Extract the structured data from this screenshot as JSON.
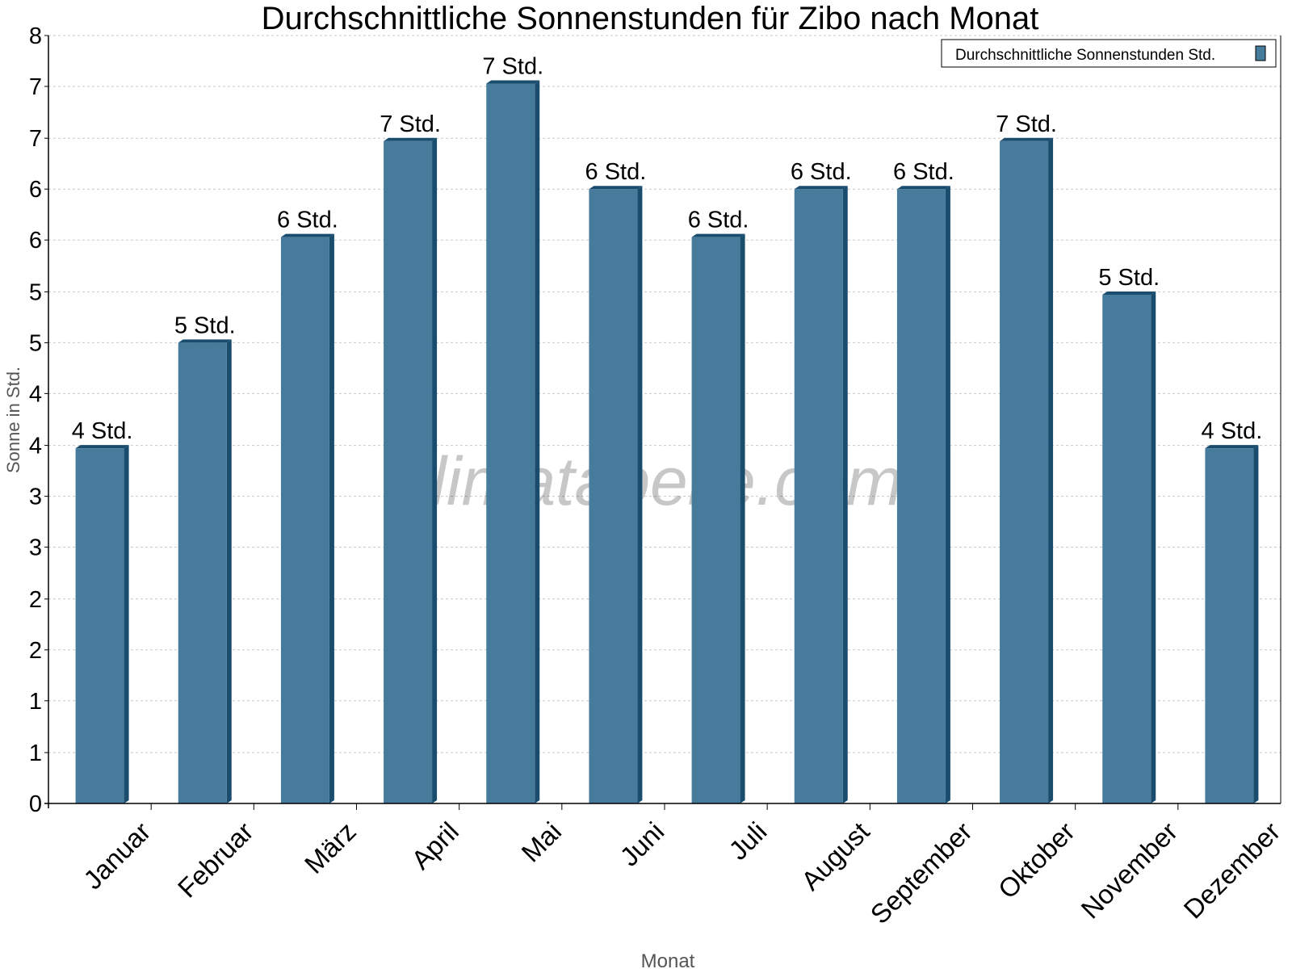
{
  "chart_data": {
    "type": "bar",
    "title": "Durchschnittliche Sonnenstunden für Zibo nach Monat",
    "xlabel": "Monat",
    "ylabel": "Sonne in Std.",
    "categories": [
      "Januar",
      "Februar",
      "März",
      "April",
      "Mai",
      "Juni",
      "Juli",
      "August",
      "September",
      "Oktober",
      "November",
      "Dezember"
    ],
    "series": [
      {
        "name": "Durchschnittliche Sonnenstunden Std.",
        "values": [
          3.7,
          4.8,
          5.9,
          6.9,
          7.5,
          6.4,
          5.9,
          6.4,
          6.4,
          6.9,
          5.3,
          3.7
        ],
        "data_labels": [
          "4 Std.",
          "5 Std.",
          "6 Std.",
          "7 Std.",
          "7 Std.",
          "6 Std.",
          "6 Std.",
          "6 Std.",
          "6 Std.",
          "7 Std.",
          "5 Std.",
          "4 Std."
        ]
      }
    ],
    "ylim": [
      0,
      8
    ],
    "yticks": [
      0,
      0.53,
      1.07,
      1.6,
      2.13,
      2.67,
      3.2,
      3.73,
      4.27,
      4.8,
      5.33,
      5.87,
      6.4,
      6.93,
      7.47,
      8
    ],
    "ytick_labels": [
      "0",
      "1",
      "1",
      "2",
      "2",
      "3",
      "3",
      "4",
      "4",
      "5",
      "5",
      "6",
      "6",
      "7",
      "7",
      "8"
    ],
    "grid": true,
    "legend_position": "top-right",
    "colors": {
      "bar": "#467b9c",
      "bar_side": "#1a4c6e",
      "grid": "#c8c8c8",
      "axis_label": "#555555"
    },
    "watermark": "klimatabelle.com"
  }
}
